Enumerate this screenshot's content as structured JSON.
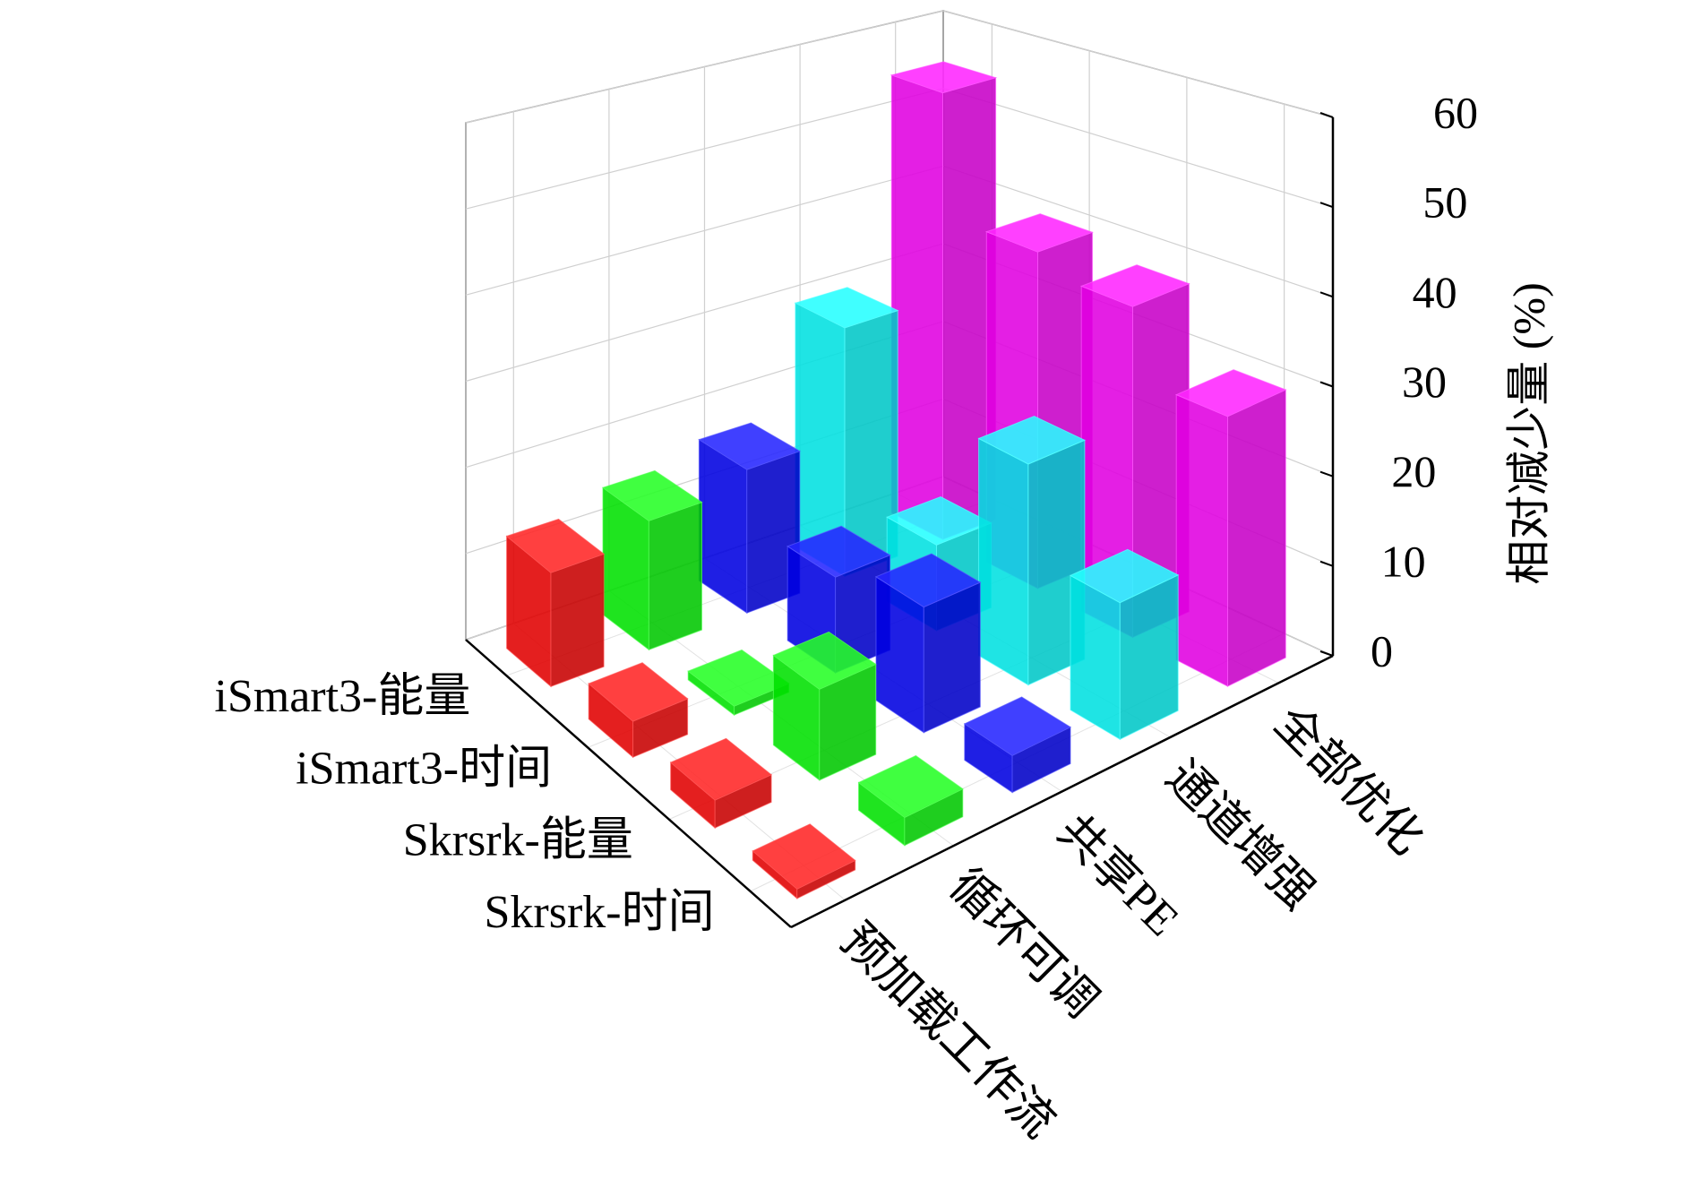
{
  "chart_data": {
    "type": "bar3d",
    "categories": [
      "预加载工作流",
      "循环可调",
      "共享PE",
      "通道增强",
      "全部优化"
    ],
    "category_colors": [
      "#ff0000",
      "#00ff00",
      "#0000ff",
      "#00ffff",
      "#ff00ff"
    ],
    "series": [
      {
        "name": "iSmart3-能量",
        "values": [
          13,
          15,
          17,
          30,
          55
        ]
      },
      {
        "name": "iSmart3-时间",
        "values": [
          4,
          1,
          11,
          10,
          40
        ]
      },
      {
        "name": "Skrsrk-能量",
        "values": [
          3,
          10,
          14,
          25,
          38
        ]
      },
      {
        "name": "Skrsrk-时间",
        "values": [
          1,
          3,
          4,
          15,
          30
        ]
      }
    ],
    "zlabel": "相对减少量 (%)",
    "zlim": [
      0,
      60
    ],
    "zticks": [
      0,
      10,
      20,
      30,
      40,
      50,
      60
    ],
    "grid": true
  }
}
